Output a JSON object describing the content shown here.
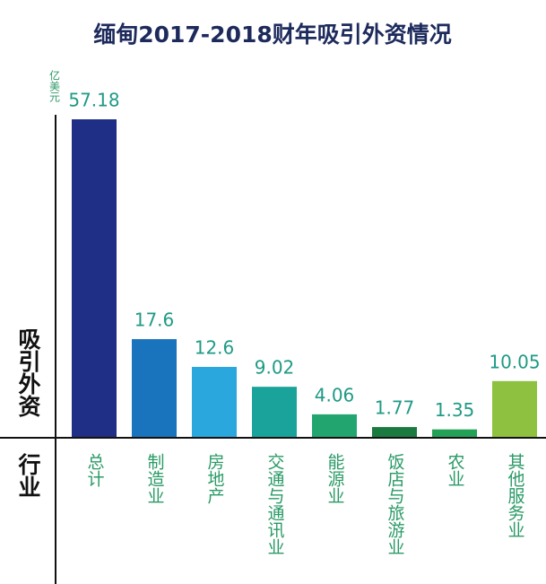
{
  "chart_data": {
    "type": "bar",
    "title": "缅甸2017-2018财年吸引外资情况",
    "unit": "亿美元",
    "y_label": "吸引外资",
    "x_label": "行业",
    "categories": [
      "总计",
      "制造业",
      "房地产",
      "交通与通讯业",
      "能源业",
      "饭店与旅游业",
      "农业",
      "其他服务业"
    ],
    "values": [
      57.18,
      17.6,
      12.6,
      9.02,
      4.06,
      1.77,
      1.35,
      10.05
    ],
    "colors": [
      "#1f2f86",
      "#1a74bd",
      "#2aa7dd",
      "#1aa39b",
      "#22a56f",
      "#1a7a3f",
      "#23a157",
      "#8ec13f"
    ]
  }
}
